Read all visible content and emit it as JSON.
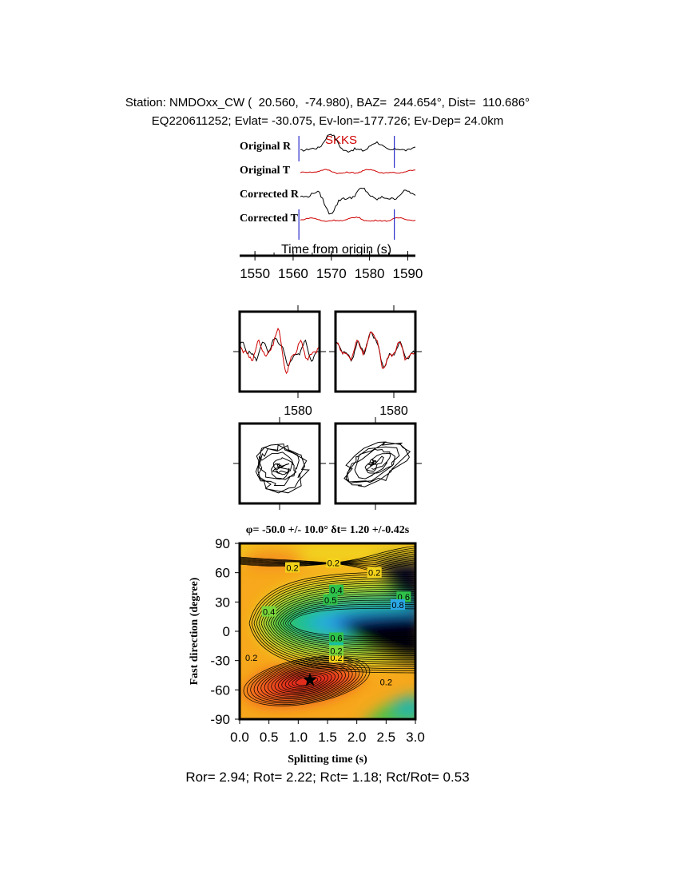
{
  "header": {
    "line1": "Station: NMDOxx_CW (  20.560,  -74.980), BAZ=  244.654°, Dist=  110.686°",
    "line2": "EQ220611252; Evlat= -30.075, Ev-lon=-177.726; Ev-Dep= 24.0km"
  },
  "traces_panel": {
    "phase_label": "SKKS",
    "trace_labels": [
      "Original R",
      "Original T",
      "Corrected R",
      "Corrected T"
    ],
    "xlabel": "Time from origin (s)",
    "xticks": [
      "1550",
      "1560",
      "1570",
      "1580",
      "1590"
    ],
    "xlim": [
      1546,
      1592
    ],
    "window_start": 1561.5,
    "window_end": 1586.5,
    "colors": {
      "radial": "#000000",
      "transverse": "#d00000",
      "window": "#0000c0"
    }
  },
  "waveform_panels": {
    "xtick_label": "1580"
  },
  "chart_data": {
    "type": "heatmap",
    "title": "φ= -50.0 +/- 10.0° δt= 1.20 +/-0.42s",
    "xlabel": "Splitting time (s)",
    "ylabel": "Fast direction (degree)",
    "xlim": [
      0.0,
      3.0
    ],
    "ylim": [
      -90,
      90
    ],
    "xticks": [
      "0.0",
      "0.5",
      "1.0",
      "1.5",
      "2.0",
      "2.5",
      "3.0"
    ],
    "yticks": [
      "90",
      "60",
      "30",
      "0",
      "-30",
      "-60",
      "-90"
    ],
    "best_fit": {
      "phi": -50.0,
      "dt": 1.2
    },
    "contour_labels": [
      "0.2",
      "0.2",
      "0.2",
      "0.4",
      "0.5",
      "0.6",
      "0.8",
      "0.4",
      "0.2",
      "0.2",
      "0.6",
      "0.8",
      "0.2",
      "0.2"
    ]
  },
  "stats": {
    "text": "Ror= 2.94; Rot= 2.22; Rct= 1.18; Rct/Rot= 0.53"
  }
}
